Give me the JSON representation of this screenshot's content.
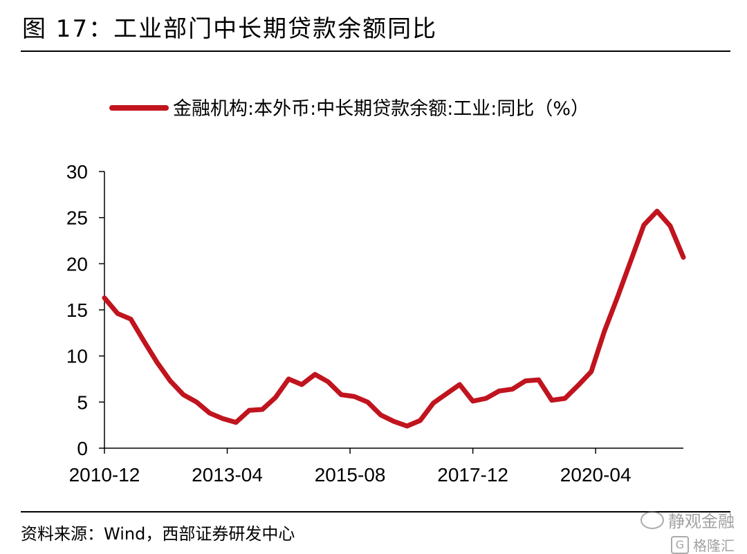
{
  "figure": {
    "title": "图 17：工业部门中长期贷款余额同比",
    "source": "资料来源：Wind，西部证券研发中心"
  },
  "watermark": {
    "top_text": "静观金融",
    "bottom_text": "格隆汇",
    "bottom_badge": "G"
  },
  "chart_data": {
    "type": "line",
    "title": "",
    "xlabel": "",
    "ylabel": "",
    "ylim": [
      0,
      30
    ],
    "yticks": [
      0,
      5,
      10,
      15,
      20,
      25,
      30
    ],
    "xtick_labels": [
      "2010-12",
      "2013-04",
      "2015-08",
      "2017-12",
      "2020-04"
    ],
    "xtick_months_index": [
      0,
      28,
      56,
      84,
      112
    ],
    "grid": false,
    "legend_position": "top",
    "series": [
      {
        "name": "金融机构:本外币:中长期贷款余额:工业:同比（%）",
        "color": "#c0141e",
        "x": [
          "2010-12",
          "2011-03",
          "2011-06",
          "2011-09",
          "2011-12",
          "2012-03",
          "2012-06",
          "2012-09",
          "2012-12",
          "2013-03",
          "2013-06",
          "2013-09",
          "2013-12",
          "2014-03",
          "2014-06",
          "2014-09",
          "2014-12",
          "2015-03",
          "2015-06",
          "2015-09",
          "2015-12",
          "2016-03",
          "2016-06",
          "2016-09",
          "2016-12",
          "2017-03",
          "2017-06",
          "2017-09",
          "2017-12",
          "2018-03",
          "2018-06",
          "2018-09",
          "2018-12",
          "2019-03",
          "2019-06",
          "2019-09",
          "2019-12",
          "2020-03",
          "2020-06",
          "2020-09",
          "2020-12",
          "2021-03",
          "2021-06",
          "2021-09",
          "2021-12"
        ],
        "values": [
          16.3,
          14.6,
          14.0,
          11.6,
          9.3,
          7.3,
          5.8,
          5.0,
          3.8,
          3.2,
          2.8,
          4.1,
          4.2,
          5.5,
          7.5,
          6.9,
          8.0,
          7.2,
          5.8,
          5.6,
          5.0,
          3.6,
          2.9,
          2.4,
          3.0,
          4.9,
          5.9,
          6.9,
          5.1,
          5.4,
          6.2,
          6.4,
          7.3,
          7.4,
          5.2,
          5.4,
          6.8,
          8.3,
          12.7,
          16.4,
          20.3,
          24.2,
          25.7,
          24.1,
          20.7
        ]
      }
    ]
  }
}
